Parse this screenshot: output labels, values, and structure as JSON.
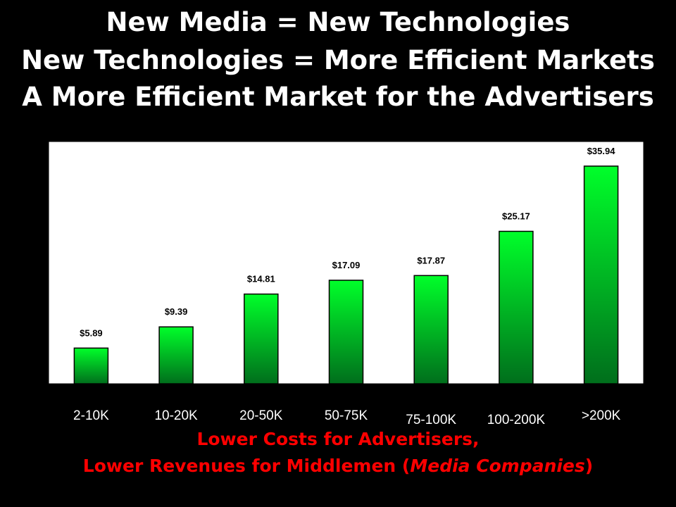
{
  "titles": [
    "New Media = New Technologies",
    "New Technologies = More Efficient Markets",
    "A More Efficient Market for the Advertisers"
  ],
  "footer": {
    "line1": "Lower Costs for Advertisers,",
    "line2_prefix": "Lower Revenues for Middlemen (",
    "line2_italic": "Media Companies",
    "line2_suffix": ")"
  },
  "colors": {
    "background": "#000000",
    "plot_area": "#ffffff",
    "bar_top": "#00ff2a",
    "bar_bottom": "#006e1c",
    "title_text": "#ffffff",
    "footer_text": "#ff0000"
  },
  "chart_data": {
    "type": "bar",
    "title": "",
    "xlabel": "",
    "ylabel": "",
    "categories": [
      "2-10K",
      "10-20K",
      "20-50K",
      "50-75K",
      "75-100K",
      "100-200K",
      ">200K"
    ],
    "values": [
      5.89,
      9.39,
      14.81,
      17.09,
      17.87,
      25.17,
      35.94
    ],
    "data_labels": [
      "$5.89",
      "$9.39",
      "$14.81",
      "$17.09",
      "$17.87",
      "$25.17",
      "$35.94"
    ],
    "ylim": [
      0,
      40
    ],
    "grid": false,
    "legend": "none"
  }
}
